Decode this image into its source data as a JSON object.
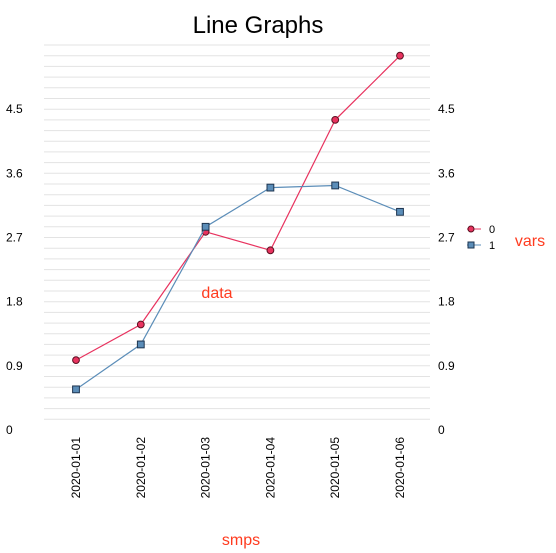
{
  "chart_data": {
    "type": "line",
    "title": "Line Graphs",
    "xlabel": "smps",
    "ylabel": "data",
    "legend_title": "vars",
    "legend_position": "right",
    "categories": [
      "2020-01-01",
      "2020-01-02",
      "2020-01-03",
      "2020-01-04",
      "2020-01-05",
      "2020-01-06"
    ],
    "series": [
      {
        "name": "0",
        "values": [
          0.98,
          1.48,
          2.78,
          2.52,
          4.35,
          5.25
        ],
        "color": "#e8335f",
        "marker": "circle"
      },
      {
        "name": "1",
        "values": [
          0.57,
          1.2,
          2.85,
          3.4,
          3.43,
          3.06
        ],
        "color": "#5b8db8",
        "marker": "square"
      }
    ],
    "yticks": [
      "0",
      "0.9",
      "1.8",
      "2.7",
      "3.6",
      "4.5"
    ],
    "ylim": [
      0,
      5.4
    ],
    "grid": true,
    "label_color": "#ff3b1f",
    "grid_color": "#e3e3e3"
  }
}
